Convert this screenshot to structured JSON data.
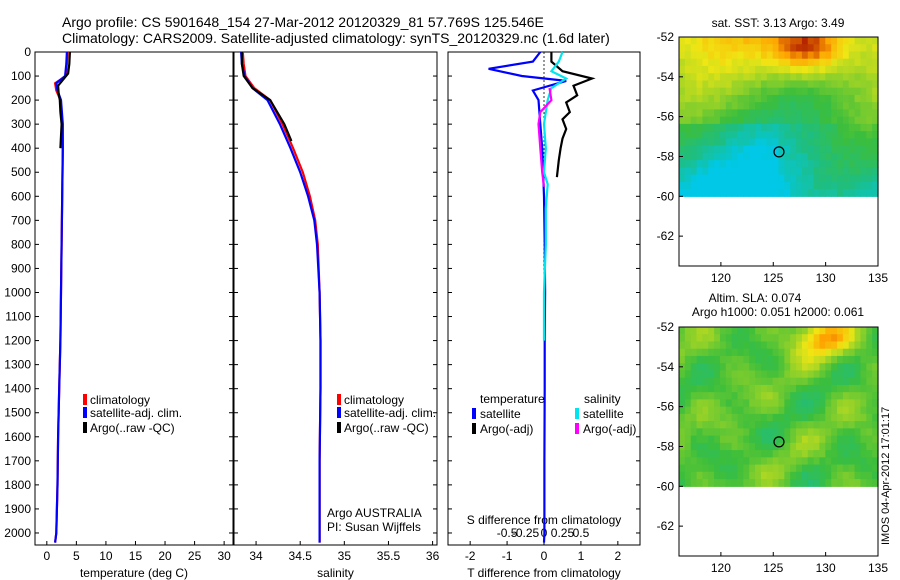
{
  "header": {
    "line1": "Argo profile: CS 5901648_154 27-Mar-2012 20120329_81 57.769S 125.546E",
    "line2": "Climatology: CARS2009. Satellite-adjusted climatology: synTS_20120329.nc (1.6d later)"
  },
  "colors": {
    "climatology": "#ff0000",
    "satellite": "#0000ff",
    "argo": "#000000",
    "sal_satellite": "#00e5ee",
    "sal_argo": "#ff00ff"
  },
  "chart_data": [
    {
      "type": "line",
      "id": "temperature",
      "xlabel": "temperature (deg C)",
      "ylabel": "",
      "xlim": [
        -2,
        31.5
      ],
      "ylim": [
        2050,
        0
      ],
      "x_ticks": [
        0,
        5,
        10,
        15,
        20,
        25,
        30
      ],
      "x_tick_labels": [
        "0",
        "5",
        "10",
        "15",
        "20",
        "25",
        "30"
      ],
      "y_ticks": [
        0,
        100,
        200,
        300,
        400,
        500,
        600,
        700,
        800,
        900,
        1000,
        1100,
        1200,
        1300,
        1400,
        1500,
        1600,
        1700,
        1800,
        1900,
        2000
      ],
      "y_tick_labels": [
        "0",
        "100",
        "200",
        "300",
        "400",
        "500",
        "600",
        "700",
        "800",
        "900",
        "1000",
        "1100",
        "1200",
        "1300",
        "1400",
        "1500",
        "1600",
        "1700",
        "1800",
        "1900",
        "2000"
      ],
      "legend": [
        "climatology",
        "satellite-adj. clim.",
        "Argo(..raw -QC)"
      ],
      "series": [
        {
          "name": "climatology",
          "color": "#ff0000",
          "x": [
            3.5,
            3.4,
            3.2,
            1.4,
            1.6,
            2.3,
            2.6,
            2.7,
            2.6,
            2.5,
            2.4,
            2.3,
            2.1,
            1.9,
            1.8,
            1.6,
            1.4
          ],
          "y": [
            0,
            50,
            100,
            130,
            160,
            200,
            300,
            400,
            600,
            800,
            1000,
            1200,
            1400,
            1600,
            1800,
            2000,
            2040
          ]
        },
        {
          "name": "satellite-adj. clim.",
          "color": "#0000ff",
          "x": [
            3.4,
            3.3,
            3.1,
            1.6,
            1.8,
            2.4,
            2.7,
            2.7,
            2.6,
            2.5,
            2.4,
            2.3,
            2.1,
            1.9,
            1.8,
            1.6,
            1.4
          ],
          "y": [
            0,
            50,
            100,
            130,
            160,
            200,
            300,
            400,
            600,
            800,
            1000,
            1200,
            1400,
            1600,
            1800,
            2000,
            2040
          ]
        },
        {
          "name": "Argo(..raw -QC)",
          "color": "#000000",
          "x": [
            3.9,
            3.8,
            3.6,
            1.9,
            2.0,
            2.2,
            2.3,
            2.5,
            2.4,
            2.3
          ],
          "y": [
            0,
            50,
            90,
            140,
            170,
            200,
            250,
            300,
            350,
            400
          ]
        }
      ]
    },
    {
      "type": "line",
      "id": "salinity",
      "xlabel": "salinity",
      "ylabel": "",
      "xlim": [
        33.75,
        36.05
      ],
      "ylim": [
        2050,
        0
      ],
      "x_ticks": [
        34,
        34.5,
        35,
        35.5,
        36
      ],
      "x_tick_labels": [
        "34",
        "34.5",
        "35",
        "35.5",
        "36"
      ],
      "legend": [
        "climatology",
        "satellite-adj. clim.",
        "Argo(..raw -QC)"
      ],
      "annotations": [
        "Argo AUSTRALIA",
        "PI: Susan Wijffels"
      ],
      "series": [
        {
          "name": "climatology",
          "color": "#ff0000",
          "x": [
            33.85,
            33.86,
            33.88,
            33.98,
            34.16,
            34.3,
            34.42,
            34.53,
            34.61,
            34.67,
            34.7,
            34.72,
            34.73,
            34.73,
            34.72,
            34.72,
            34.72
          ],
          "y": [
            0,
            50,
            100,
            150,
            200,
            300,
            400,
            500,
            600,
            700,
            800,
            1000,
            1200,
            1400,
            1700,
            2000,
            2040
          ]
        },
        {
          "name": "satellite-adj. clim.",
          "color": "#0000ff",
          "x": [
            33.83,
            33.84,
            33.87,
            33.96,
            34.13,
            34.27,
            34.39,
            34.5,
            34.59,
            34.66,
            34.69,
            34.72,
            34.73,
            34.73,
            34.72,
            34.72,
            34.72
          ],
          "y": [
            0,
            50,
            100,
            150,
            200,
            300,
            400,
            500,
            600,
            700,
            800,
            1000,
            1200,
            1400,
            1700,
            2000,
            2040
          ]
        },
        {
          "name": "Argo(..raw -QC)",
          "color": "#000000",
          "x": [
            33.84,
            33.84,
            33.86,
            33.96,
            34.16,
            34.32,
            34.4
          ],
          "y": [
            0,
            50,
            100,
            150,
            200,
            300,
            370
          ]
        }
      ]
    },
    {
      "type": "line",
      "id": "differences",
      "xlabel": "T difference from climatology",
      "x2label": "S difference from climatology",
      "xlim": [
        -2.6,
        2.6
      ],
      "ylim": [
        2050,
        0
      ],
      "x_ticks": [
        -2,
        -1,
        0,
        1,
        2
      ],
      "x_tick_labels": [
        "-2",
        "-1",
        "0",
        "1",
        "2"
      ],
      "x2_ticks": [
        -1,
        -0.5,
        0,
        0.5,
        1
      ],
      "x2_tick_labels": [
        "-0.5",
        "-0.25",
        "0",
        "0.25",
        "0.5"
      ],
      "legend_titles": [
        "temperature",
        "salinity"
      ],
      "legend": [
        "satellite",
        "Argo(-adj)",
        "satellite",
        "Argo(-adj)"
      ],
      "series": [
        {
          "name": "satellite",
          "group": "temperature",
          "color": "#0000ff",
          "x": [
            -0.1,
            -0.3,
            -1.5,
            -0.6,
            0.6,
            -0.3,
            -0.15,
            -0.1,
            -0.05,
            0,
            0.02,
            0.03,
            0.02,
            0.02,
            0.01,
            0.01,
            0.0
          ],
          "y": [
            0,
            40,
            70,
            100,
            120,
            160,
            200,
            300,
            400,
            600,
            800,
            1000,
            1200,
            1400,
            1700,
            2000,
            2040
          ]
        },
        {
          "name": "Argo(-adj)",
          "group": "temperature",
          "color": "#000000",
          "x": [
            0.2,
            0.2,
            0.5,
            1.3,
            0.8,
            0.9,
            0.6,
            0.7,
            0.5,
            0.6,
            0.5,
            0.45,
            0.4,
            0.35
          ],
          "y": [
            0,
            40,
            80,
            110,
            140,
            180,
            210,
            250,
            280,
            320,
            360,
            400,
            450,
            520
          ]
        },
        {
          "name": "satellite",
          "group": "salinity",
          "color": "#00e5ee",
          "x": [
            0.5,
            0.4,
            0.2,
            0.6,
            0.2,
            0.1,
            0.05,
            0.0,
            0.05,
            0.0,
            0.1,
            0.05,
            0.05,
            0.0,
            0.0
          ],
          "y": [
            0,
            40,
            80,
            110,
            150,
            200,
            250,
            300,
            400,
            500,
            550,
            650,
            800,
            1000,
            1200
          ]
        },
        {
          "name": "Argo(-adj)",
          "group": "salinity",
          "color": "#ff00ff",
          "x": [
            0.15,
            0.2,
            -0.1,
            -0.15,
            -0.1,
            -0.05,
            0.0
          ],
          "y": [
            150,
            200,
            250,
            300,
            400,
            500,
            560
          ]
        }
      ]
    },
    {
      "type": "heatmap",
      "id": "sst_map",
      "title": "sat. SST: 3.13 Argo: 3.49",
      "xlim": [
        116,
        135
      ],
      "ylim": [
        -63.5,
        -52
      ],
      "x_ticks": [
        120,
        125,
        130,
        135
      ],
      "x_tick_labels": [
        "120",
        "125",
        "130",
        "135"
      ],
      "y_ticks": [
        -52,
        -54,
        -56,
        -58,
        -60,
        -62
      ],
      "y_tick_labels": [
        "-52",
        "-54",
        "-56",
        "-58",
        "-60",
        "-62"
      ],
      "data_extent_lat": [
        -60,
        -52
      ],
      "marker": {
        "lon": 125.546,
        "lat": -57.769
      }
    },
    {
      "type": "heatmap",
      "id": "sla_map",
      "title": "Altim. SLA: 0.074",
      "subtitle": "Argo h1000: 0.051 h2000: 0.061",
      "xlim": [
        116,
        135
      ],
      "ylim": [
        -63.5,
        -52
      ],
      "x_ticks": [
        120,
        125,
        130,
        135
      ],
      "x_tick_labels": [
        "120",
        "125",
        "130",
        "135"
      ],
      "y_ticks": [
        -52,
        -54,
        -56,
        -58,
        -60,
        -62
      ],
      "y_tick_labels": [
        "-52",
        "-54",
        "-56",
        "-58",
        "-60",
        "-62"
      ],
      "data_extent_lat": [
        -60,
        -52
      ],
      "marker": {
        "lon": 125.546,
        "lat": -57.769
      }
    }
  ],
  "watermark": "IMOS 04-Apr-2012 17:01:17"
}
